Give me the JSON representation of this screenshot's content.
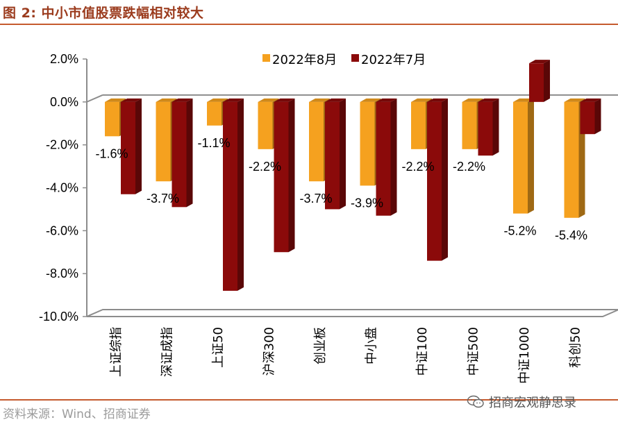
{
  "figure": {
    "title": "图 2:  中小市值股票跌幅相对较大",
    "source": "资料来源：Wind、招商证券",
    "watermark": "招商宏观静思录"
  },
  "colors": {
    "series_aug": "#f5a11f",
    "series_jul": "#8b0a0a",
    "accent": "#c55a2d"
  },
  "chart_data": {
    "type": "bar",
    "categories": [
      "上证综指",
      "深证成指",
      "上证50",
      "沪深300",
      "创业板",
      "中小盘",
      "中证100",
      "中证500",
      "中证1000",
      "科创50"
    ],
    "series": [
      {
        "name": "2022年8月",
        "values": [
          -1.6,
          -3.7,
          -1.1,
          -2.2,
          -3.7,
          -3.9,
          -2.2,
          -2.2,
          -5.2,
          -5.4
        ],
        "labels": [
          "-1.6%",
          "-3.7%",
          "-1.1%",
          "-2.2%",
          "-3.7%",
          "-3.9%",
          "-2.2%",
          "-2.2%",
          "-5.2%",
          "-5.4%"
        ]
      },
      {
        "name": "2022年7月",
        "values": [
          -4.3,
          -4.9,
          -8.8,
          -7.0,
          -5.0,
          -5.3,
          -7.4,
          -2.5,
          1.8,
          -1.5
        ]
      }
    ],
    "ylim": [
      -10,
      2
    ],
    "yticks": [
      "2.0%",
      "0.0%",
      "-2.0%",
      "-4.0%",
      "-6.0%",
      "-8.0%",
      "-10.0%"
    ],
    "legend_position": "top-right",
    "grid": false
  }
}
